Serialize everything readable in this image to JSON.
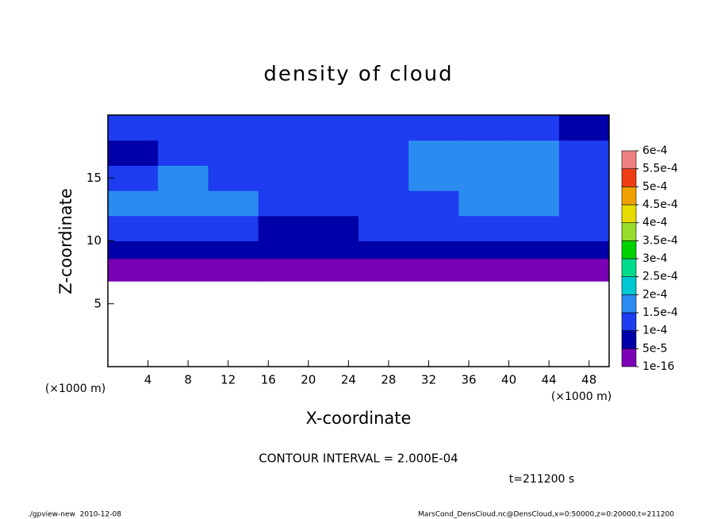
{
  "chart_data": {
    "type": "heatmap",
    "title": "density of cloud",
    "x_label": "X-coordinate",
    "y_label": "Z-coordinate",
    "x_unit": "(×1000 m)",
    "y_unit": "(×1000 m)",
    "xlim": [
      0,
      50
    ],
    "ylim": [
      0,
      20
    ],
    "xticks": [
      4,
      8,
      12,
      16,
      20,
      24,
      28,
      32,
      36,
      40,
      44,
      48
    ],
    "yticks": [
      5,
      10,
      15
    ],
    "xbins": [
      0,
      5,
      10,
      15,
      20,
      25,
      30,
      35,
      40,
      45,
      50
    ],
    "zbins": [
      6.8,
      8.6,
      10,
      12,
      14,
      16,
      18,
      20
    ],
    "values": [
      [
        3e-05,
        3e-05,
        3e-05,
        3e-05,
        3e-05,
        3e-05,
        3e-05,
        3e-05,
        3e-05,
        3e-05
      ],
      [
        6e-05,
        6e-05,
        6e-05,
        6e-05,
        9e-05,
        6e-05,
        6e-05,
        6e-05,
        6e-05,
        6e-05
      ],
      [
        0.00012,
        0.00011,
        0.00012,
        9e-05,
        9e-05,
        0.00011,
        0.00011,
        0.00011,
        0.00011,
        0.00011
      ],
      [
        0.00016,
        0.00016,
        0.00015,
        0.00012,
        0.00013,
        0.00014,
        0.00014,
        0.00016,
        0.00015,
        0.00014
      ],
      [
        0.00013,
        0.00016,
        0.00014,
        0.00012,
        0.00013,
        0.00014,
        0.00016,
        0.00017,
        0.00016,
        0.00013
      ],
      [
        8e-05,
        0.00011,
        0.00013,
        0.00012,
        0.00013,
        0.00013,
        0.00015,
        0.00017,
        0.00015,
        0.00011
      ],
      [
        0.00011,
        0.00012,
        0.00011,
        0.00011,
        0.00012,
        0.00012,
        0.00011,
        0.00011,
        0.00011,
        9e-05
      ]
    ],
    "colorbar_ticks": [
      {
        "value": 1e-16,
        "label": "1e-16"
      },
      {
        "value": 5e-05,
        "label": "5e-5"
      },
      {
        "value": 0.0001,
        "label": "1e-4"
      },
      {
        "value": 0.00015,
        "label": "1.5e-4"
      },
      {
        "value": 0.0002,
        "label": "2e-4"
      },
      {
        "value": 0.00025,
        "label": "2.5e-4"
      },
      {
        "value": 0.0003,
        "label": "3e-4"
      },
      {
        "value": 0.00035,
        "label": "3.5e-4"
      },
      {
        "value": 0.0004,
        "label": "4e-4"
      },
      {
        "value": 0.00045,
        "label": "4.5e-4"
      },
      {
        "value": 0.0005,
        "label": "5e-4"
      },
      {
        "value": 0.00055,
        "label": "5.5e-4"
      },
      {
        "value": 0.0006,
        "label": "6e-4"
      }
    ],
    "colorbar_colors": [
      "#7a00b4",
      "#0000a8",
      "#1e3cf0",
      "#2a8cf0",
      "#00c8d2",
      "#00dc8c",
      "#00d200",
      "#96dc28",
      "#e6dc00",
      "#f0a000",
      "#f03c14",
      "#f08080"
    ],
    "contour_note": "CONTOUR INTERVAL = 2.000E-04",
    "time_note": "t=211200 s",
    "footer_left": "./gpview-new  2010-12-08",
    "footer_right": "MarsCond_DensCloud.nc@DensCloud,x=0:50000,z=0:20000,t=211200"
  }
}
